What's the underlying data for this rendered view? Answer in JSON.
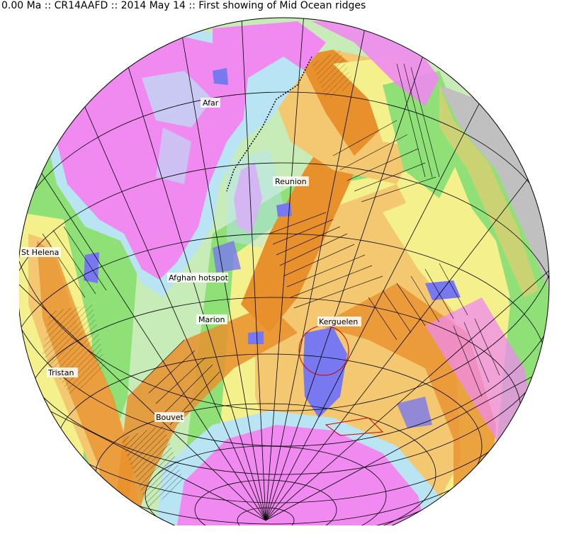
{
  "header": {
    "title": "0.00 Ma :: CR14AAFD :: 2014 May 14 :: First showing of Mid Ocean ridges"
  },
  "map": {
    "projection": "orthographic globe",
    "hotspots": [
      {
        "id": "afar",
        "label": "Afar"
      },
      {
        "id": "reunion",
        "label": "Reunion"
      },
      {
        "id": "st-helena",
        "label": "St Helena"
      },
      {
        "id": "afghan",
        "label": "Afghan hotspot"
      },
      {
        "id": "marion",
        "label": "Marion"
      },
      {
        "id": "kerguelen",
        "label": "Kerguelen"
      },
      {
        "id": "tristan",
        "label": "Tristan"
      },
      {
        "id": "bouvet",
        "label": "Bouvet"
      }
    ],
    "colors": {
      "continent": "#f08af0",
      "shelf": "#b8e4f4",
      "young_crust": "#e8902c",
      "mid_crust": "#f4c870",
      "old_crust_yellow": "#f4f08c",
      "old_crust_green": "#90e078",
      "oldest_crust": "#c8ecb8",
      "plateau": "#7878f0",
      "land_grey": "#c0c0c0",
      "outline": "#000000"
    }
  }
}
